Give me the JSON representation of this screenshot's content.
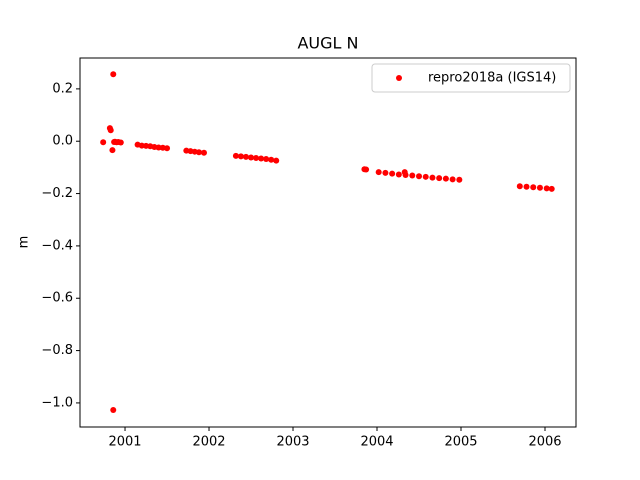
{
  "chart_data": {
    "type": "scatter",
    "title": "AUGL N",
    "ylabel": "m",
    "xlim": [
      2000.464,
      2006.369
    ],
    "ylim": [
      -1.092,
      0.318
    ],
    "xticks": [
      2001,
      2002,
      2003,
      2004,
      2005,
      2006
    ],
    "yticks": [
      0.2,
      {
        "value": 0,
        "label": "0.0"
      },
      {
        "value": -0.2,
        "label": "−0.2"
      },
      {
        "value": -0.4,
        "label": "−0.4"
      },
      {
        "value": -0.6,
        "label": "−0.6"
      },
      {
        "value": -0.8,
        "label": "−0.8"
      },
      {
        "value": -1.0,
        "label": "−1.0"
      }
    ],
    "grid": false,
    "legend": "upper right",
    "series": [
      {
        "name": "repro2018a (IGS14)",
        "color": "#ff0000",
        "x": [
          2000.74,
          2000.82,
          2000.83,
          2000.86,
          2000.86,
          2000.85,
          2000.87,
          2000.88,
          2000.9,
          2000.92,
          2000.95,
          2001.15,
          2001.2,
          2001.25,
          2001.3,
          2001.35,
          2001.4,
          2001.45,
          2001.5,
          2001.73,
          2001.78,
          2001.83,
          2001.88,
          2001.94,
          2002.32,
          2002.38,
          2002.44,
          2002.5,
          2002.56,
          2002.62,
          2002.68,
          2002.74,
          2002.8,
          2003.85,
          2003.87,
          2004.02,
          2004.1,
          2004.18,
          2004.26,
          2004.33,
          2004.34,
          2004.42,
          2004.5,
          2004.58,
          2004.66,
          2004.74,
          2004.82,
          2004.9,
          2004.98,
          2005.7,
          2005.78,
          2005.86,
          2005.94,
          2006.02,
          2006.08
        ],
        "values": [
          -0.004,
          0.05,
          0.042,
          0.256,
          -1.027,
          -0.034,
          -0.003,
          -0.002,
          -0.004,
          -0.003,
          -0.005,
          -0.013,
          -0.017,
          -0.018,
          -0.019,
          -0.022,
          -0.024,
          -0.025,
          -0.027,
          -0.036,
          -0.038,
          -0.04,
          -0.042,
          -0.044,
          -0.056,
          -0.058,
          -0.06,
          -0.062,
          -0.064,
          -0.066,
          -0.068,
          -0.071,
          -0.074,
          -0.107,
          -0.108,
          -0.118,
          -0.121,
          -0.124,
          -0.127,
          -0.118,
          -0.129,
          -0.131,
          -0.134,
          -0.136,
          -0.139,
          -0.141,
          -0.143,
          -0.146,
          -0.147,
          -0.172,
          -0.174,
          -0.176,
          -0.178,
          -0.18,
          -0.182
        ]
      }
    ]
  }
}
